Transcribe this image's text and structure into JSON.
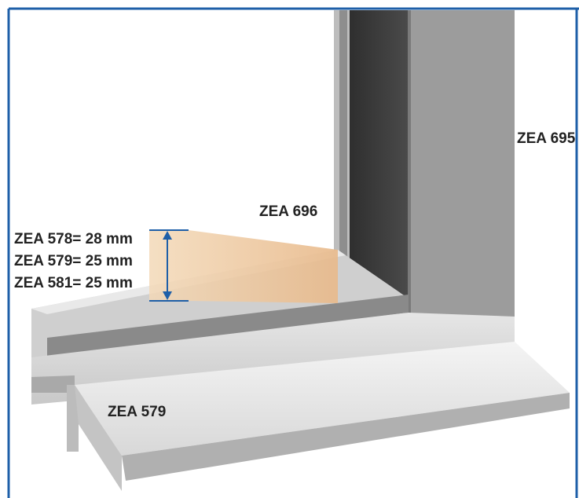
{
  "labels": {
    "frame": "ZEA 695",
    "sash": "ZEA 696",
    "sill": "ZEA 579"
  },
  "dimensions": [
    "ZEA 578= 28 mm",
    "ZEA 579= 25 mm",
    "ZEA 581= 25 mm"
  ]
}
